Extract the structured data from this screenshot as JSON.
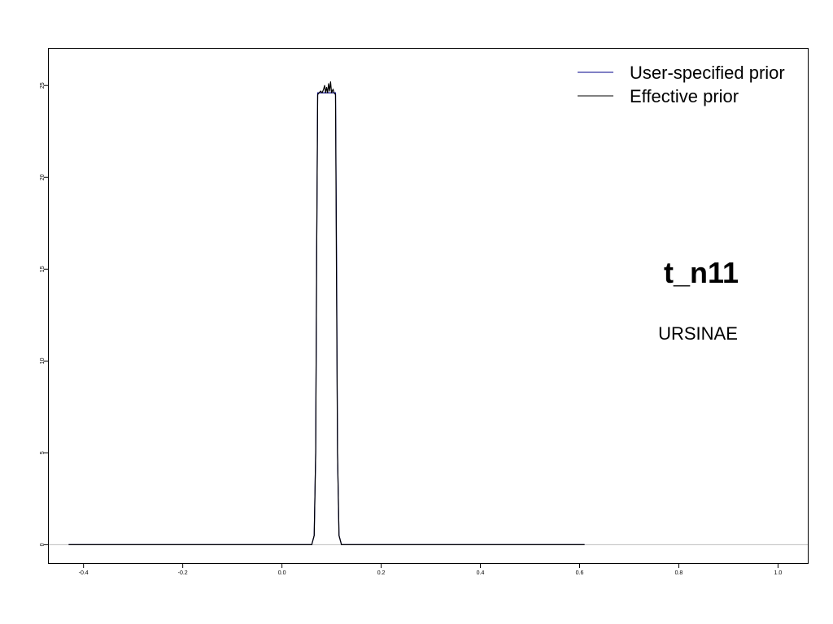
{
  "chart_data": {
    "type": "line",
    "title": "",
    "xlabel": "",
    "ylabel": "",
    "xlim": [
      -0.47,
      1.06
    ],
    "ylim": [
      -1.0,
      27.0
    ],
    "x_ticks": [
      "-0.4",
      "-0.2",
      "0.0",
      "0.2",
      "0.4",
      "0.6",
      "0.8",
      "1.0"
    ],
    "y_ticks": [
      "0",
      "5",
      "10",
      "15",
      "20",
      "25"
    ],
    "annotations": {
      "node": "t_n11",
      "clade": "URSINAE"
    },
    "reference_line": {
      "y": 0,
      "color": "#bdbdbd"
    },
    "series": [
      {
        "name": "User-specified prior",
        "color": "#00008b",
        "x": [
          -0.43,
          0.06,
          0.065,
          0.068,
          0.07,
          0.072,
          0.075,
          0.08,
          0.09,
          0.1,
          0.105,
          0.108,
          0.11,
          0.112,
          0.115,
          0.12,
          0.61
        ],
        "y": [
          0,
          0,
          0.5,
          5,
          16,
          24.6,
          24.6,
          24.6,
          24.6,
          24.6,
          24.6,
          24.6,
          16,
          5,
          0.5,
          0,
          0
        ]
      },
      {
        "name": "Effective prior",
        "color": "#000000",
        "x": [
          -0.43,
          0.06,
          0.065,
          0.068,
          0.07,
          0.072,
          0.075,
          0.078,
          0.081,
          0.084,
          0.086,
          0.088,
          0.09,
          0.092,
          0.094,
          0.096,
          0.098,
          0.1,
          0.103,
          0.105,
          0.108,
          0.11,
          0.112,
          0.115,
          0.12,
          0.61
        ],
        "y": [
          0,
          0,
          0.5,
          5,
          16,
          24.5,
          24.6,
          24.7,
          24.6,
          24.8,
          25.0,
          24.6,
          24.9,
          24.6,
          25.1,
          24.7,
          25.2,
          24.6,
          24.8,
          24.6,
          24.5,
          14,
          5,
          0.5,
          0,
          0
        ]
      }
    ],
    "legend": {
      "position": "top-right"
    }
  }
}
